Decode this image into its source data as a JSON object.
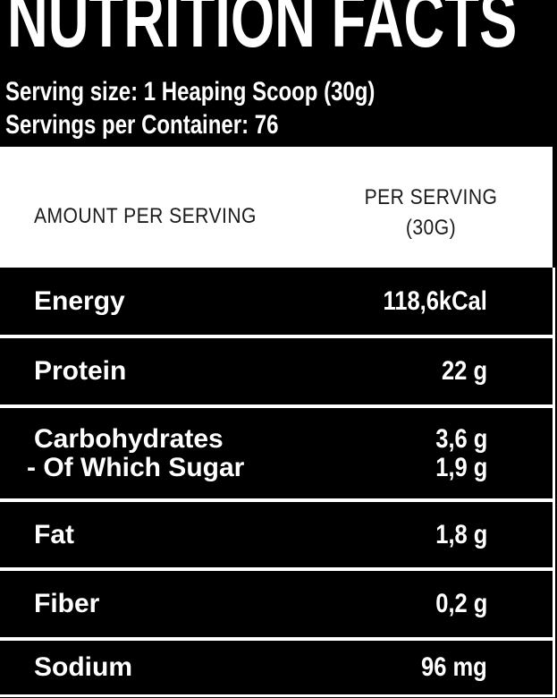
{
  "title": "NUTRITION FACTS",
  "serving": {
    "size_line": "Serving size: 1 Heaping Scoop (30g)",
    "container_line": "Servings per Container: 76"
  },
  "table_header": {
    "amount": "AMOUNT PER SERVING",
    "per_serving_line1": "PER SERVING",
    "per_serving_line2": "(30G)"
  },
  "rows": [
    {
      "name": "Energy",
      "value": "118,6kCal"
    },
    {
      "name": "Protein",
      "value": "22 g"
    },
    {
      "name": "Carbohydrates",
      "value": "3,6 g",
      "sub_name": "- Of Which Sugar",
      "sub_value": "1,9 g"
    },
    {
      "name": "Fat",
      "value": "1,8 g"
    },
    {
      "name": "Fiber",
      "value": "0,2 g"
    },
    {
      "name": "Sodium",
      "value": "96 mg"
    }
  ],
  "colors": {
    "background": "#000000",
    "row_background": "#000000",
    "divider": "#ffffff",
    "band_background": "#ffffff",
    "text_on_dark": "#ffffff",
    "text_on_light": "#1b1b1b"
  }
}
